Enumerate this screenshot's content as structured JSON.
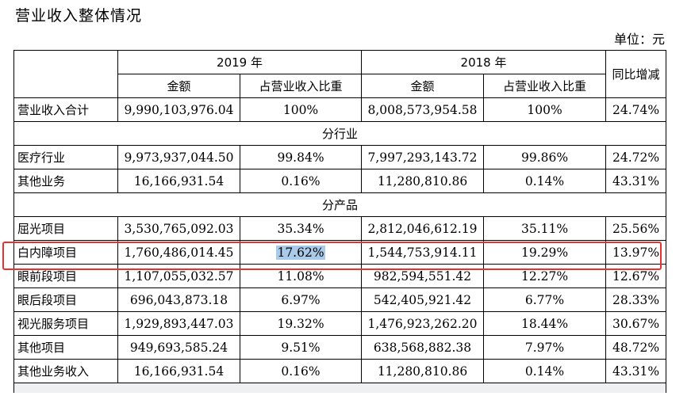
{
  "title": "营业收入整体情况",
  "unit": "单位：元",
  "header": {
    "year_2019": "2019 年",
    "year_2018": "2018 年",
    "amount": "金额",
    "ratio": "占营业收入比重",
    "yoy": "同比增减"
  },
  "total": {
    "label": "营业收入合计",
    "amount_2019": "9,990,103,976.04",
    "ratio_2019": "100%",
    "amount_2018": "8,008,573,954.58",
    "ratio_2018": "100%",
    "yoy": "24.74%"
  },
  "section_industry": "分行业",
  "industry_rows": [
    {
      "label": "医疗行业",
      "amount_2019": "9,973,937,044.50",
      "ratio_2019": "99.84%",
      "amount_2018": "7,997,293,143.72",
      "ratio_2018": "99.86%",
      "yoy": "24.72%"
    },
    {
      "label": "其他业务",
      "amount_2019": "16,166,931.54",
      "ratio_2019": "0.16%",
      "amount_2018": "11,280,810.86",
      "ratio_2018": "0.14%",
      "yoy": "43.31%"
    }
  ],
  "section_product": "分产品",
  "product_rows": [
    {
      "label": "屈光项目",
      "amount_2019": "3,530,765,092.03",
      "ratio_2019": "35.34%",
      "amount_2018": "2,812,046,612.19",
      "ratio_2018": "35.11%",
      "yoy": "25.56%"
    },
    {
      "label": "白内障项目",
      "amount_2019": "1,760,486,014.45",
      "ratio_2019": "17.62%",
      "amount_2018": "1,544,753,914.11",
      "ratio_2018": "19.29%",
      "yoy": "13.97%"
    },
    {
      "label": "眼前段项目",
      "amount_2019": "1,107,055,032.57",
      "ratio_2019": "11.08%",
      "amount_2018": "982,594,551.42",
      "ratio_2018": "12.27%",
      "yoy": "12.67%"
    },
    {
      "label": "眼后段项目",
      "amount_2019": "696,043,873.18",
      "ratio_2019": "6.97%",
      "amount_2018": "542,405,921.42",
      "ratio_2018": "6.77%",
      "yoy": "28.33%"
    },
    {
      "label": "视光服务项目",
      "amount_2019": "1,929,893,447.03",
      "ratio_2019": "19.32%",
      "amount_2018": "1,476,923,262.20",
      "ratio_2018": "18.44%",
      "yoy": "30.67%"
    },
    {
      "label": "其他项目",
      "amount_2019": "949,693,585.24",
      "ratio_2019": "9.51%",
      "amount_2018": "638,568,882.38",
      "ratio_2018": "7.97%",
      "yoy": "48.72%"
    },
    {
      "label": "其他业务收入",
      "amount_2019": "16,166,931.54",
      "ratio_2019": "0.16%",
      "amount_2018": "11,280,810.86",
      "ratio_2018": "0.14%",
      "yoy": "43.31%"
    }
  ],
  "colors": {
    "highlight_box": "#e8322f",
    "text_selection": "#a9cbe9"
  }
}
